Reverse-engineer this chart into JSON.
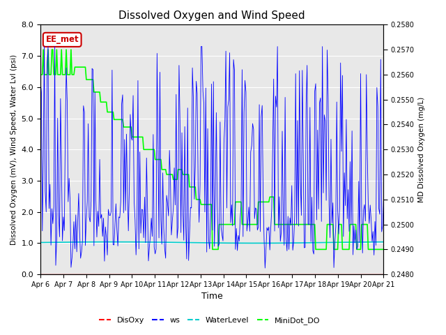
{
  "title": "Dissolved Oxygen and Wind Speed",
  "ylabel_left": "Dissolved Oxygen (mV), Wind Speed, Water Lvl (psi)",
  "ylabel_right": "MD Dissolved Oxygen (mg/L)",
  "xlabel": "Time",
  "ylim_left": [
    0.0,
    8.0
  ],
  "ylim_right": [
    0.248,
    0.258
  ],
  "x_tick_labels": [
    "Apr 6",
    "Apr 7",
    "Apr 8",
    "Apr 9",
    "Apr 10",
    "Apr 11",
    "Apr 12",
    "Apr 13",
    "Apr 14",
    "Apr 15",
    "Apr 16",
    "Apr 17",
    "Apr 18",
    "Apr 19",
    "Apr 20",
    "Apr 21"
  ],
  "annotation_text": "EE_met",
  "annotation_color": "#cc0000",
  "background_color": "#e8e8e8",
  "legend_entries": [
    "DisOxy",
    "ws",
    "WaterLevel",
    "MiniDot_DO"
  ],
  "legend_colors": [
    "#ff0000",
    "#0000ff",
    "#00cccc",
    "#00ff00"
  ],
  "right_ticks": [
    0.248,
    0.249,
    0.25,
    0.251,
    0.252,
    0.253,
    0.254,
    0.255,
    0.256,
    0.257,
    0.258
  ]
}
